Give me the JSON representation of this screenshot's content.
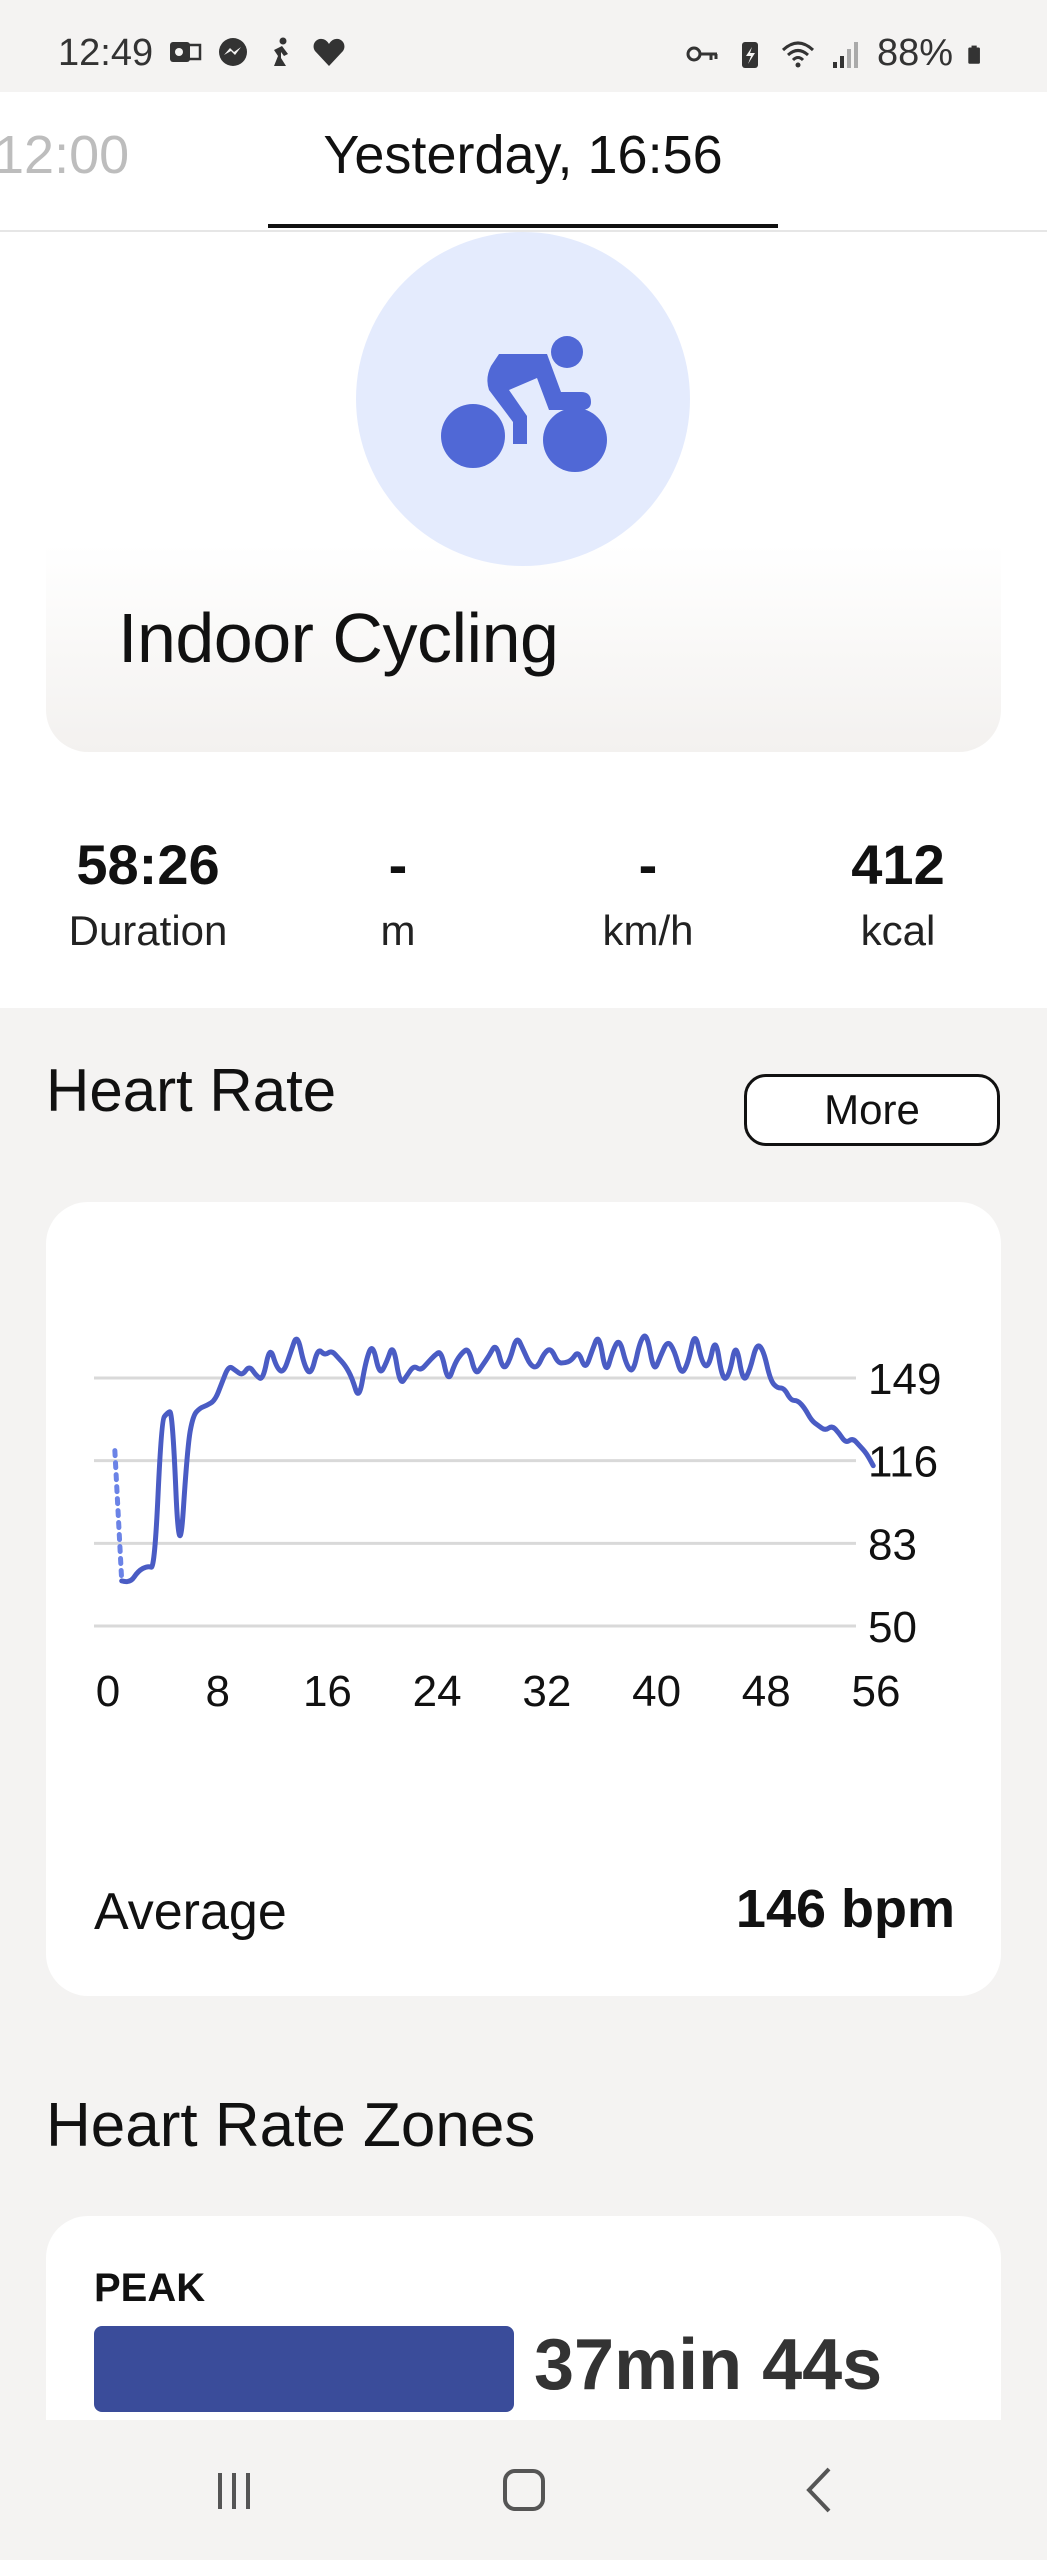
{
  "status_bar": {
    "time": "12:49",
    "battery": "88%",
    "left_icons": [
      "outlook-icon",
      "messenger-icon",
      "activity-icon",
      "heart-icon"
    ],
    "right_icons": [
      "vpn-key-icon",
      "battery-saver-icon",
      "wifi-icon",
      "signal-icon",
      "battery-icon"
    ]
  },
  "tabs": {
    "previous": "12:00",
    "current": "Yesterday, 16:56"
  },
  "activity": {
    "icon": "cycling-icon",
    "title": "Indoor Cycling",
    "accent_color": "#5068d6",
    "circle_color": "#e4ebfd"
  },
  "stats": [
    {
      "value": "58:26",
      "label": "Duration"
    },
    {
      "value": "-",
      "label": "m"
    },
    {
      "value": "-",
      "label": "km/h"
    },
    {
      "value": "412",
      "label": "kcal"
    }
  ],
  "heart_rate": {
    "title": "Heart Rate",
    "more_label": "More",
    "average_label": "Average",
    "average_value": "146 bpm"
  },
  "chart_data": {
    "type": "line",
    "xlabel": "",
    "ylabel": "",
    "xlim": [
      0,
      56
    ],
    "ylim": [
      50,
      149
    ],
    "x_ticks": [
      "0",
      "8",
      "16",
      "24",
      "32",
      "40",
      "48",
      "56"
    ],
    "y_ticks": [
      "149",
      "116",
      "83",
      "50"
    ],
    "grid": true,
    "line_color": "#4a5cc4",
    "series": [
      {
        "dotted_segment": [
          [
            0.5,
            120
          ],
          [
            1.0,
            68
          ]
        ],
        "x": [
          1.0,
          1.6,
          2.2,
          2.9,
          3.4,
          3.9,
          4.3,
          4.7,
          5.2,
          5.8,
          6.2,
          6.7,
          7.2,
          7.8,
          8.3,
          8.8,
          9.3,
          9.8,
          10.3,
          10.8,
          11.3,
          11.8,
          12.3,
          12.8,
          13.3,
          13.8,
          14.3,
          14.8,
          15.3,
          15.8,
          16.3,
          16.8,
          17.3,
          17.8,
          18.3,
          18.8,
          19.3,
          19.8,
          20.3,
          20.8,
          21.3,
          21.8,
          22.3,
          22.8,
          23.3,
          23.8,
          24.3,
          24.8,
          25.3,
          25.8,
          26.3,
          26.8,
          27.3,
          27.8,
          28.3,
          28.8,
          29.3,
          29.8,
          30.3,
          30.8,
          31.3,
          31.8,
          32.3,
          32.8,
          33.3,
          33.8,
          34.3,
          34.8,
          35.3,
          35.8,
          36.3,
          36.8,
          37.3,
          37.8,
          38.3,
          38.8,
          39.3,
          39.8,
          40.3,
          40.8,
          41.3,
          41.8,
          42.3,
          42.8,
          43.3,
          43.8,
          44.3,
          44.8,
          45.3,
          45.8,
          46.3,
          46.8,
          47.3,
          47.8,
          48.3,
          48.8,
          49.3,
          49.8,
          50.3,
          50.8,
          51.3,
          51.8,
          52.3,
          52.8,
          53.3,
          53.8,
          54.3,
          54.8,
          55.3,
          55.8
        ],
        "y": [
          68,
          67,
          72,
          74,
          73,
          132,
          135,
          136,
          72,
          122,
          134,
          137,
          138,
          140,
          147,
          154,
          152,
          150,
          154,
          150,
          148,
          162,
          153,
          151,
          159,
          167,
          154,
          150,
          161,
          158,
          160,
          157,
          154,
          149,
          140,
          156,
          163,
          150,
          155,
          163,
          146,
          150,
          154,
          152,
          155,
          158,
          160,
          147,
          155,
          159,
          161,
          150,
          154,
          158,
          163,
          152,
          156,
          166,
          160,
          154,
          153,
          159,
          161,
          155,
          155,
          156,
          160,
          152,
          160,
          167,
          150,
          160,
          165,
          154,
          151,
          164,
          167,
          151,
          158,
          164,
          160,
          150,
          155,
          168,
          155,
          153,
          166,
          148,
          150,
          164,
          147,
          152,
          163,
          160,
          148,
          145,
          145,
          140,
          140,
          137,
          132,
          130,
          128,
          130,
          127,
          123,
          125,
          122,
          119,
          114
        ]
      }
    ]
  },
  "zones": {
    "title": "Heart Rate Zones",
    "items": [
      {
        "label": "PEAK",
        "time": "37min 44s",
        "color": "#3a4c9a"
      }
    ]
  },
  "nav": {
    "recent": "recents-icon",
    "home": "home-icon",
    "back": "back-icon"
  }
}
